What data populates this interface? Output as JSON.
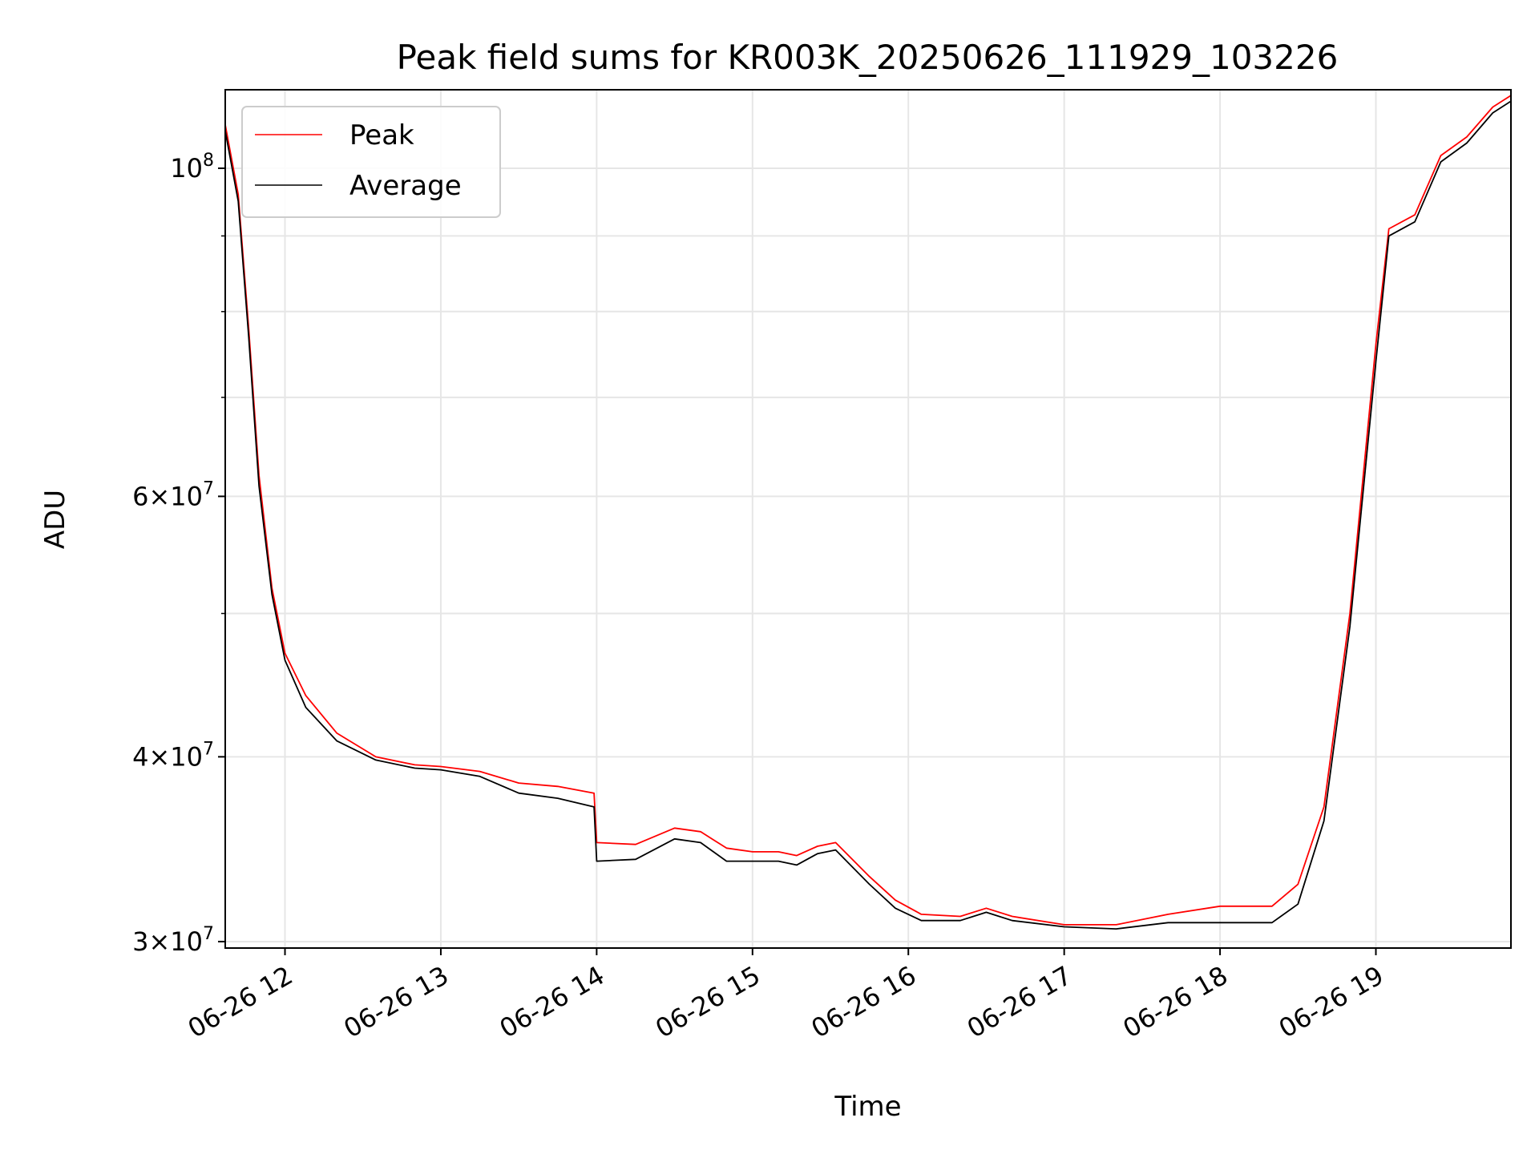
{
  "chart_data": {
    "type": "line",
    "title": "Peak field sums for KR003K_20250626_111929_103226",
    "xlabel": "Time",
    "ylabel": "ADU",
    "yscale": "log",
    "grid": true,
    "legend_position": "top-left",
    "xlim": [
      "2025-06-26 11:37",
      "2025-06-26 19:52"
    ],
    "ylim": [
      29700000,
      113000000
    ],
    "x_ticks": [
      {
        "value": "2025-06-26 12:00",
        "label": "06-26 12"
      },
      {
        "value": "2025-06-26 13:00",
        "label": "06-26 13"
      },
      {
        "value": "2025-06-26 14:00",
        "label": "06-26 14"
      },
      {
        "value": "2025-06-26 15:00",
        "label": "06-26 15"
      },
      {
        "value": "2025-06-26 16:00",
        "label": "06-26 16"
      },
      {
        "value": "2025-06-26 17:00",
        "label": "06-26 17"
      },
      {
        "value": "2025-06-26 18:00",
        "label": "06-26 18"
      },
      {
        "value": "2025-06-26 19:00",
        "label": "06-26 19"
      }
    ],
    "y_ticks": [
      {
        "value": 30000000,
        "base": "3",
        "exp": "7"
      },
      {
        "value": 40000000,
        "base": "4",
        "exp": "7"
      },
      {
        "value": 60000000,
        "base": "6",
        "exp": "7"
      },
      {
        "value": 100000000,
        "base": "",
        "exp": "8"
      }
    ],
    "y_minor_ticks": [
      50000000,
      70000000,
      80000000,
      90000000
    ],
    "series": [
      {
        "name": "Peak",
        "color": "#ff0000",
        "points": [
          [
            "2025-06-26 11:37",
            107000000
          ],
          [
            "2025-06-26 11:42",
            96000000
          ],
          [
            "2025-06-26 11:46",
            78000000
          ],
          [
            "2025-06-26 11:50",
            62000000
          ],
          [
            "2025-06-26 11:55",
            52000000
          ],
          [
            "2025-06-26 12:00",
            47000000
          ],
          [
            "2025-06-26 12:08",
            44000000
          ],
          [
            "2025-06-26 12:20",
            41500000
          ],
          [
            "2025-06-26 12:35",
            40000000
          ],
          [
            "2025-06-26 12:50",
            39500000
          ],
          [
            "2025-06-26 13:00",
            39400000
          ],
          [
            "2025-06-26 13:15",
            39100000
          ],
          [
            "2025-06-26 13:30",
            38400000
          ],
          [
            "2025-06-26 13:45",
            38200000
          ],
          [
            "2025-06-26 13:59",
            37800000
          ],
          [
            "2025-06-26 14:00",
            35000000
          ],
          [
            "2025-06-26 14:15",
            34900000
          ],
          [
            "2025-06-26 14:30",
            35800000
          ],
          [
            "2025-06-26 14:40",
            35600000
          ],
          [
            "2025-06-26 14:50",
            34700000
          ],
          [
            "2025-06-26 15:00",
            34500000
          ],
          [
            "2025-06-26 15:10",
            34500000
          ],
          [
            "2025-06-26 15:17",
            34300000
          ],
          [
            "2025-06-26 15:25",
            34800000
          ],
          [
            "2025-06-26 15:32",
            35000000
          ],
          [
            "2025-06-26 15:45",
            33200000
          ],
          [
            "2025-06-26 15:55",
            32000000
          ],
          [
            "2025-06-26 16:05",
            31300000
          ],
          [
            "2025-06-26 16:20",
            31200000
          ],
          [
            "2025-06-26 16:30",
            31600000
          ],
          [
            "2025-06-26 16:40",
            31200000
          ],
          [
            "2025-06-26 17:00",
            30800000
          ],
          [
            "2025-06-26 17:20",
            30800000
          ],
          [
            "2025-06-26 17:40",
            31300000
          ],
          [
            "2025-06-26 18:00",
            31700000
          ],
          [
            "2025-06-26 18:20",
            31700000
          ],
          [
            "2025-06-26 18:30",
            32800000
          ],
          [
            "2025-06-26 18:40",
            37000000
          ],
          [
            "2025-06-26 18:50",
            50000000
          ],
          [
            "2025-06-26 19:00",
            76000000
          ],
          [
            "2025-06-26 19:05",
            91000000
          ],
          [
            "2025-06-26 19:15",
            93000000
          ],
          [
            "2025-06-26 19:25",
            102000000
          ],
          [
            "2025-06-26 19:35",
            105000000
          ],
          [
            "2025-06-26 19:45",
            110000000
          ],
          [
            "2025-06-26 19:52",
            112000000
          ]
        ]
      },
      {
        "name": "Average",
        "color": "#000000",
        "points": [
          [
            "2025-06-26 11:37",
            106000000
          ],
          [
            "2025-06-26 11:42",
            95000000
          ],
          [
            "2025-06-26 11:46",
            77000000
          ],
          [
            "2025-06-26 11:50",
            61000000
          ],
          [
            "2025-06-26 11:55",
            51500000
          ],
          [
            "2025-06-26 12:00",
            46500000
          ],
          [
            "2025-06-26 12:08",
            43200000
          ],
          [
            "2025-06-26 12:20",
            41000000
          ],
          [
            "2025-06-26 12:35",
            39800000
          ],
          [
            "2025-06-26 12:50",
            39300000
          ],
          [
            "2025-06-26 13:00",
            39200000
          ],
          [
            "2025-06-26 13:15",
            38800000
          ],
          [
            "2025-06-26 13:30",
            37800000
          ],
          [
            "2025-06-26 13:45",
            37500000
          ],
          [
            "2025-06-26 13:59",
            37000000
          ],
          [
            "2025-06-26 14:00",
            34000000
          ],
          [
            "2025-06-26 14:15",
            34100000
          ],
          [
            "2025-06-26 14:30",
            35200000
          ],
          [
            "2025-06-26 14:40",
            35000000
          ],
          [
            "2025-06-26 14:50",
            34000000
          ],
          [
            "2025-06-26 15:00",
            34000000
          ],
          [
            "2025-06-26 15:10",
            34000000
          ],
          [
            "2025-06-26 15:17",
            33800000
          ],
          [
            "2025-06-26 15:25",
            34400000
          ],
          [
            "2025-06-26 15:32",
            34600000
          ],
          [
            "2025-06-26 15:45",
            32800000
          ],
          [
            "2025-06-26 15:55",
            31600000
          ],
          [
            "2025-06-26 16:05",
            31000000
          ],
          [
            "2025-06-26 16:20",
            31000000
          ],
          [
            "2025-06-26 16:30",
            31400000
          ],
          [
            "2025-06-26 16:40",
            31000000
          ],
          [
            "2025-06-26 17:00",
            30700000
          ],
          [
            "2025-06-26 17:20",
            30600000
          ],
          [
            "2025-06-26 17:40",
            30900000
          ],
          [
            "2025-06-26 18:00",
            30900000
          ],
          [
            "2025-06-26 18:20",
            30900000
          ],
          [
            "2025-06-26 18:30",
            31800000
          ],
          [
            "2025-06-26 18:40",
            36200000
          ],
          [
            "2025-06-26 18:50",
            49000000
          ],
          [
            "2025-06-26 19:00",
            74000000
          ],
          [
            "2025-06-26 19:05",
            90000000
          ],
          [
            "2025-06-26 19:15",
            92000000
          ],
          [
            "2025-06-26 19:25",
            101000000
          ],
          [
            "2025-06-26 19:35",
            104000000
          ],
          [
            "2025-06-26 19:45",
            109000000
          ],
          [
            "2025-06-26 19:52",
            111000000
          ]
        ]
      }
    ]
  }
}
